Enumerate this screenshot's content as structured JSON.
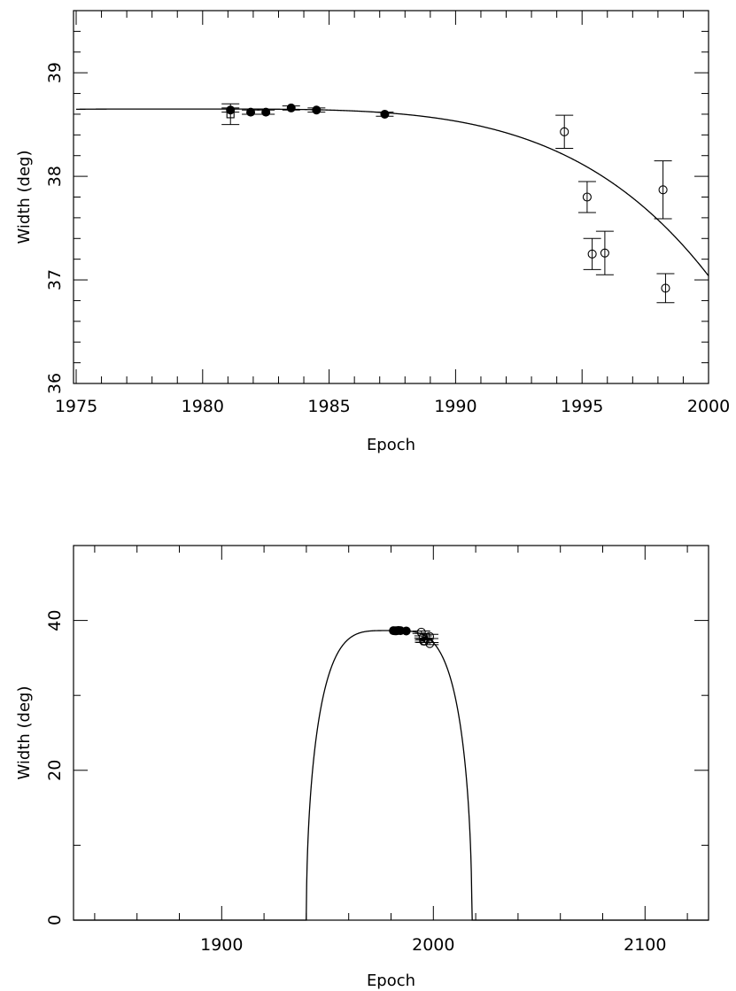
{
  "chart_data": [
    {
      "type": "scatter",
      "xlabel": "Epoch",
      "ylabel": "Width (deg)",
      "xlim": [
        1975,
        2000
      ],
      "ylim": [
        36,
        39.6
      ],
      "x_major_ticks": [
        1975,
        1980,
        1985,
        1990,
        1995,
        2000
      ],
      "x_minor_step": 1,
      "y_major_ticks": [
        36,
        37,
        38,
        39
      ],
      "y_minor_step": 0.2,
      "x_tick_labels": [
        "1975",
        "1980",
        "1985",
        "1990",
        "1995",
        "2000"
      ],
      "y_tick_labels": [
        "36",
        "37",
        "38",
        "39"
      ],
      "grid": false,
      "series": [
        {
          "marker": "filled-circle",
          "x": [
            1981.1,
            1981.9,
            1982.5,
            1983.5,
            1984.5,
            1987.2
          ],
          "y": [
            38.64,
            38.62,
            38.62,
            38.66,
            38.64,
            38.6
          ],
          "yerr": [
            0.02,
            0.02,
            0.02,
            0.02,
            0.02,
            0.02
          ]
        },
        {
          "marker": "open-square",
          "x": [
            1981.1
          ],
          "y": [
            38.6
          ],
          "yerr": [
            0.1
          ]
        },
        {
          "marker": "open-circle",
          "x": [
            1994.3,
            1995.2,
            1995.4,
            1995.9,
            1998.2,
            1998.3
          ],
          "y": [
            38.43,
            37.8,
            37.25,
            37.26,
            37.87,
            36.92
          ],
          "yerr": [
            0.16,
            0.15,
            0.15,
            0.21,
            0.28,
            0.14
          ]
        },
        {
          "marker": "line",
          "model": {
            "amplitude": 38.65,
            "epoch_zero": 1979.1,
            "half_span": 39.1
          }
        }
      ]
    },
    {
      "type": "scatter",
      "xlabel": "Epoch",
      "ylabel": "Width (deg)",
      "xlim": [
        1830,
        2130
      ],
      "ylim": [
        0,
        50
      ],
      "x_major_ticks": [
        1900,
        2000,
        2100
      ],
      "x_minor_step": 20,
      "y_major_ticks": [
        0,
        20,
        40
      ],
      "y_minor_step": 10,
      "x_tick_labels": [
        "1900",
        "2000",
        "2100"
      ],
      "y_tick_labels": [
        "0",
        "20",
        "40"
      ],
      "grid": false,
      "series": [
        {
          "marker": "filled-circle",
          "x": [
            1981.1,
            1981.9,
            1982.5,
            1983.5,
            1984.5,
            1987.2
          ],
          "y": [
            38.64,
            38.62,
            38.62,
            38.66,
            38.64,
            38.6
          ]
        },
        {
          "marker": "open-circle",
          "x": [
            1994.3,
            1995.2,
            1995.4,
            1995.9,
            1998.2,
            1998.3
          ],
          "y": [
            38.43,
            37.8,
            37.25,
            37.26,
            37.87,
            36.92
          ],
          "yerr": [
            0.16,
            0.15,
            0.15,
            0.21,
            0.28,
            0.14
          ]
        },
        {
          "marker": "line",
          "model": {
            "amplitude": 38.65,
            "epoch_zero": 1979.1,
            "half_span": 39.1
          }
        }
      ]
    }
  ]
}
